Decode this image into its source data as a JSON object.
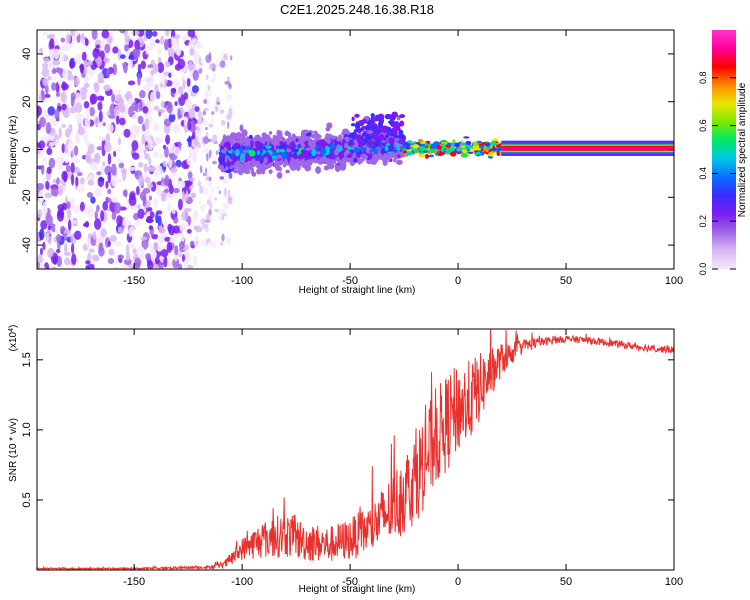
{
  "title": "C2E1.2025.248.16.38.R18",
  "chart_data": [
    {
      "type": "heatmap",
      "name": "spectrogram",
      "xlabel": "Height of straight line (km)",
      "ylabel": "Frequency (Hz)",
      "xlim": [
        -195,
        100
      ],
      "ylim": [
        -50,
        50
      ],
      "xticks": [
        -150,
        -100,
        -50,
        0,
        50,
        100
      ],
      "yticks": [
        -40,
        -20,
        0,
        20,
        40
      ],
      "colorbar": {
        "label": "Normalized spectral amplitude",
        "range": [
          0,
          1
        ],
        "ticks": [
          "0.0",
          "0.2",
          "0.4",
          "0.6",
          "0.8"
        ],
        "tick_values": [
          0,
          0.2,
          0.4,
          0.6,
          0.8
        ],
        "colors": [
          "#f4e8fb",
          "#d9b8f2",
          "#a066e8",
          "#7a1cf0",
          "#3a2cff",
          "#0a6cff",
          "#00c8e8",
          "#00e868",
          "#7ce800",
          "#e8e800",
          "#ff8800",
          "#ff0000",
          "#ff0099",
          "#ff33cc"
        ]
      },
      "features": [
        {
          "label": "noise",
          "x_range": [
            -195,
            -120
          ],
          "freq_range": [
            -50,
            50
          ],
          "amplitude": 0.1
        },
        {
          "label": "transition",
          "x_range": [
            -120,
            -105
          ],
          "freq_range": [
            -40,
            40
          ],
          "amplitude": 0.05
        },
        {
          "label": "signal_band",
          "x_range": [
            -110,
            -25
          ],
          "center_freq": [
            -1,
            -3,
            -2,
            0,
            2
          ],
          "amplitude": 0.3
        },
        {
          "label": "narrowing_band",
          "x_range": [
            -25,
            20
          ],
          "center_freq": 0.5,
          "amplitude": 0.6
        },
        {
          "label": "steady_line",
          "x_range": [
            20,
            100
          ],
          "center_freq": 0.5,
          "amplitude": 0.9
        }
      ]
    },
    {
      "type": "line",
      "name": "snr",
      "xlabel": "Height of straight line (km)",
      "ylabel": "SNR (10 * v/v)",
      "exponent_label": "(x10",
      "exponent": "4",
      "exponent_close": ")",
      "xlim": [
        -195,
        100
      ],
      "ylim": [
        0,
        1.72
      ],
      "xticks": [
        -150,
        -100,
        -50,
        0,
        50,
        100
      ],
      "yticks": [
        "0.5",
        "1.0",
        "1.5"
      ],
      "ytick_values": [
        0.5,
        1.0,
        1.5
      ],
      "color": "#e8302c",
      "series": [
        {
          "name": "SNR",
          "x": [
            -195,
            -150,
            -115,
            -108,
            -100,
            -90,
            -80,
            -70,
            -60,
            -50,
            -40,
            -30,
            -25,
            -20,
            -15,
            -10,
            -5,
            0,
            5,
            10,
            15,
            20,
            25,
            30,
            40,
            50,
            60,
            70,
            80,
            90,
            100
          ],
          "values": [
            0.01,
            0.01,
            0.02,
            0.04,
            0.15,
            0.22,
            0.25,
            0.2,
            0.18,
            0.22,
            0.3,
            0.45,
            0.55,
            0.65,
            0.8,
            0.95,
            1.05,
            1.15,
            1.2,
            1.3,
            1.4,
            1.5,
            1.55,
            1.6,
            1.63,
            1.65,
            1.64,
            1.62,
            1.6,
            1.58,
            1.57
          ],
          "noise": [
            0.005,
            0.005,
            0.01,
            0.03,
            0.08,
            0.14,
            0.16,
            0.14,
            0.13,
            0.15,
            0.18,
            0.25,
            0.3,
            0.32,
            0.35,
            0.35,
            0.35,
            0.32,
            0.3,
            0.25,
            0.18,
            0.12,
            0.08,
            0.05,
            0.03,
            0.025,
            0.025,
            0.025,
            0.025,
            0.025,
            0.025
          ]
        }
      ]
    }
  ]
}
